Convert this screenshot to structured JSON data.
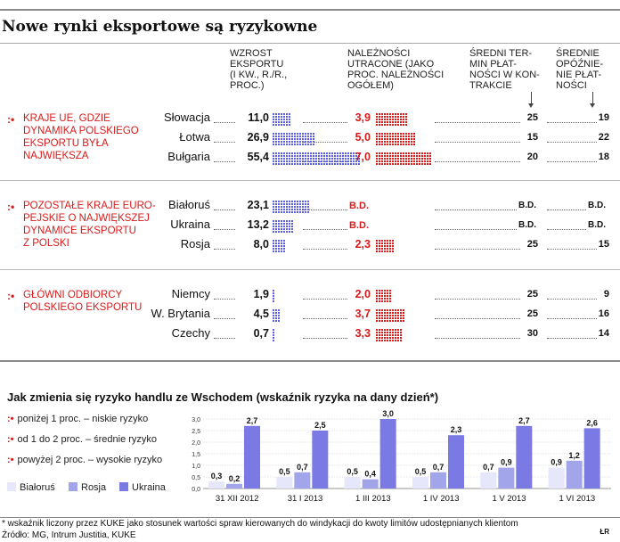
{
  "title": "Nowe rynki eksportowe są ryzykowne",
  "columns": {
    "growth": "WZROST\nEKSPORTU\n(I KW., R./R.,\nPROC.)",
    "lost": "NALEŻNOŚCI\nUTRACONE (JAKO\nPROC. NALEŻNOŚCI\nOGÓŁEM)",
    "term": "ŚREDNI TER-\nMIN  PŁAT-\nNOŚCI W KON-\nTRAKCIE",
    "delay": "ŚREDNIE\nOPÓŹNIE-\nNIE PŁAT-\nNOŚCI"
  },
  "groups": [
    {
      "marker": ":•",
      "label": "KRAJE UE, GDZIE\nDYNAMIKA POLSKIEGO\nEKSPORTU BYŁA\nNAJWIĘKSZA",
      "rows": [
        {
          "country": "Słowacja",
          "growth": "11,0",
          "lost": "3,9",
          "term": "25",
          "delay": "19"
        },
        {
          "country": "Łotwa",
          "growth": "26,9",
          "lost": "5,0",
          "term": "15",
          "delay": "22"
        },
        {
          "country": "Bułgaria",
          "growth": "55,4",
          "lost": "7,0",
          "term": "20",
          "delay": "18"
        }
      ]
    },
    {
      "marker": ":•",
      "label": "POZOSTAŁE KRAJE EURO-\nPEJSKIE O NAJWIĘKSZEJ\nDYNAMICE EKSPORTU\nZ POLSKI",
      "rows": [
        {
          "country": "Białoruś",
          "growth": "23,1",
          "lost": "B.D.",
          "term": "B.D.",
          "delay": "B.D."
        },
        {
          "country": "Ukraina",
          "growth": "13,2",
          "lost": "B.D.",
          "term": "B.D.",
          "delay": "B.D."
        },
        {
          "country": "Rosja",
          "growth": "8,0",
          "lost": "2,3",
          "term": "25",
          "delay": "15"
        }
      ]
    },
    {
      "marker": ":•",
      "label": "GŁÓWNI ODBIORCY\nPOLSKIEGO EKSPORTU",
      "rows": [
        {
          "country": "Niemcy",
          "growth": "1,9",
          "lost": "2,0",
          "term": "25",
          "delay": "9"
        },
        {
          "country": "W. Brytania",
          "growth": "4,5",
          "lost": "3,7",
          "term": "25",
          "delay": "16"
        },
        {
          "country": "Czechy",
          "growth": "0,7",
          "lost": "3,3",
          "term": "30",
          "delay": "14"
        }
      ]
    }
  ],
  "chart_title": "Jak zmienia się ryzyko handlu ze Wschodem (wskaźnik ryzyka na dany dzień*)",
  "risk_legend": [
    {
      "marker": ":•",
      "text": "poniżej 1 proc. – niskie ryzyko"
    },
    {
      "marker": ":•",
      "text": "od 1 do 2 proc. – średnie ryzyko"
    },
    {
      "marker": ":•",
      "text": "powyżej 2 proc. – wysokie ryzyko"
    }
  ],
  "colors": {
    "red": "#d91a1a",
    "blue": "#5b5fe0",
    "bialorus": "#e6e7fa",
    "rosja": "#a3a5ea",
    "ukraina": "#7b79e3"
  },
  "chart_data": {
    "type": "bar",
    "categories": [
      "31 XII 2012",
      "31 I 2013",
      "1 III 2013",
      "1 IV 2013",
      "1 V 2013",
      "1 VI 2013"
    ],
    "series": [
      {
        "name": "Białoruś",
        "values": [
          0.3,
          0.5,
          0.5,
          0.5,
          0.7,
          0.9
        ],
        "labels": [
          "0,3",
          "0,5",
          "0,5",
          "0,5",
          "0,7",
          "0,9"
        ]
      },
      {
        "name": "Rosja",
        "values": [
          0.2,
          0.7,
          0.4,
          0.7,
          0.9,
          1.2
        ],
        "labels": [
          "0,2",
          "0,7",
          "0,4",
          "0,7",
          "0,9",
          "1,2"
        ]
      },
      {
        "name": "Ukraina",
        "values": [
          2.7,
          2.5,
          3.0,
          2.3,
          2.7,
          2.6
        ],
        "labels": [
          "2,7",
          "2,5",
          "3,0",
          "2,3",
          "2,7",
          "2,6"
        ]
      }
    ],
    "ylim": [
      0,
      3.0
    ],
    "yticks": [
      "0,0",
      "0,5",
      "1,0",
      "1,5",
      "2,0",
      "2,5",
      "3,0"
    ],
    "ytick_values": [
      0,
      0.5,
      1.0,
      1.5,
      2.0,
      2.5,
      3.0
    ],
    "legend": "bottom-left"
  },
  "footnote": "* wskaźnik liczony przez KUKE jako stosunek wartości spraw kierowanych do windykacji do kwoty limitów udostępnianych klientom",
  "source": "Źródło: MG, Intrum Justitia, KUKE",
  "credit": "ŁR"
}
